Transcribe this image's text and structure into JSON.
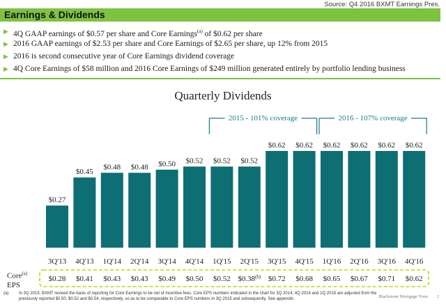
{
  "source": "Source: Q4 2016 BXMT Earnings Pres.",
  "title": "Earnings & Dividends",
  "bullets": [
    {
      "pre": "4Q GAAP earnings of $0.57 per share and Core Earnings",
      "sup": "(a)",
      "post": " of $0.62 per share"
    },
    {
      "pre": "2016 GAAP earnings of $2.53 per share and Core Earnings of $2.65 per share, up 12% from 2015",
      "sup": "",
      "post": ""
    },
    {
      "pre": "2016 is second consecutive year of Core Earnings dividend coverage",
      "sup": "",
      "post": ""
    },
    {
      "pre": "4Q Core Earnings of $58 million and 2016 Core Earnings of $249 million generated entirely by portfolio lending business",
      "sup": "",
      "post": ""
    }
  ],
  "colors": {
    "accent": "#7ec242",
    "bar": "#0d6e73",
    "bracket": "#1a7b8a",
    "eps_border": "#c8d400"
  },
  "chart_data": {
    "type": "bar",
    "title": "Quarterly Dividends",
    "categories": [
      "3Q'13",
      "4Q'13",
      "1Q'14",
      "2Q'14",
      "3Q'14",
      "4Q'14",
      "1Q'15",
      "2Q'15",
      "3Q'15",
      "4Q'15",
      "1Q'16",
      "2Q'16",
      "3Q'16",
      "4Q'16"
    ],
    "values": [
      0.27,
      0.45,
      0.48,
      0.48,
      0.5,
      0.52,
      0.52,
      0.52,
      0.62,
      0.62,
      0.62,
      0.62,
      0.62,
      0.62
    ],
    "value_labels": [
      "$0.27",
      "$0.45",
      "$0.48",
      "$0.48",
      "$0.50",
      "$0.52",
      "$0.52",
      "$0.52",
      "$0.62",
      "$0.62",
      "$0.62",
      "$0.62",
      "$0.62",
      "$0.62"
    ],
    "ylim": [
      0,
      0.62
    ],
    "grid": false,
    "annotations": [
      {
        "text": "2015 - 101% coverage",
        "from": "1Q'15",
        "to": "4Q'15"
      },
      {
        "text": "2016 - 107% coverage",
        "from": "1Q'16",
        "to": "4Q'16"
      }
    ],
    "core_eps": {
      "label": "Core",
      "label_sup": "(a)",
      "label2": "EPS",
      "values": [
        "$0.28",
        "$0.41",
        "$0.43",
        "$0.43",
        "$0.49",
        "$0.50",
        "$0.52",
        "$0.38",
        "$0.72",
        "$0.68",
        "$0.65",
        "$0.67",
        "$0.71",
        "$0.62"
      ],
      "sups": [
        "",
        "",
        "",
        "",
        "",
        "",
        "",
        "(b)",
        "",
        "",
        "",
        "",
        "",
        ""
      ]
    }
  },
  "footnote": {
    "tag": "(a)",
    "text": "In 3Q 2015, BXMT revised the basis of reporting for Core Earnings to be net of incentive fees. Core EPS numbers indicated in the chart for 3Q 2014, 4Q 2014 and 1Q 2015 are adjusted from the previously reported $0.50, $0.52 and $0.54, respectively, so as to be comparable to Core EPS numbers in 3Q 2015 and subsequently. See appendix"
  },
  "brand": "Blackstone Mortgage Trust",
  "page": "2"
}
